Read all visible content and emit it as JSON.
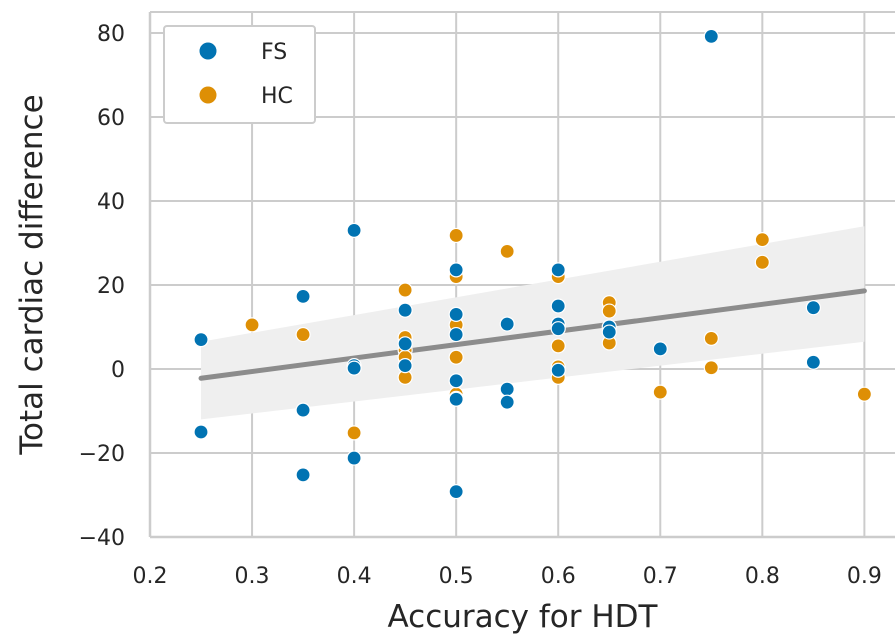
{
  "chart_data": {
    "type": "scatter",
    "xlabel": "Accuracy for HDT",
    "ylabel": "Total cardiac difference",
    "xlim": [
      0.2,
      0.93
    ],
    "ylim": [
      -40,
      85
    ],
    "xticks": [
      0.2,
      0.3,
      0.4,
      0.5,
      0.6,
      0.7,
      0.8,
      0.9
    ],
    "xtick_labels": [
      "0.2",
      "0.3",
      "0.4",
      "0.5",
      "0.6",
      "0.7",
      "0.8",
      "0.9"
    ],
    "yticks": [
      -40,
      -20,
      0,
      20,
      40,
      60,
      80
    ],
    "ytick_labels": [
      "−40",
      "−20",
      "0",
      "20",
      "40",
      "60",
      "80"
    ],
    "grid": true,
    "legend_position": "top-left",
    "series": [
      {
        "name": "FS",
        "color": "#0173b2",
        "x": [
          0.25,
          0.25,
          0.35,
          0.35,
          0.35,
          0.4,
          0.4,
          0.4,
          0.4,
          0.45,
          0.45,
          0.45,
          0.5,
          0.5,
          0.5,
          0.5,
          0.5,
          0.5,
          0.55,
          0.55,
          0.55,
          0.6,
          0.6,
          0.6,
          0.6,
          0.6,
          0.65,
          0.65,
          0.7,
          0.75,
          0.85,
          0.85
        ],
        "y": [
          7,
          -15,
          17.3,
          -9.8,
          -25.2,
          33,
          0.8,
          0.2,
          -21.2,
          14,
          6,
          0.8,
          23.6,
          13,
          8.2,
          -2.8,
          -7.2,
          -29.2,
          10.7,
          -4.8,
          -7.9,
          23.6,
          15,
          10.7,
          9.6,
          -0.3,
          10,
          8.8,
          4.8,
          79.2,
          14.6,
          1.6
        ]
      },
      {
        "name": "HC",
        "color": "#de8f05",
        "x": [
          0.3,
          0.35,
          0.4,
          0.45,
          0.45,
          0.45,
          0.45,
          0.45,
          0.5,
          0.5,
          0.5,
          0.5,
          0.5,
          0.5,
          0.55,
          0.6,
          0.6,
          0.6,
          0.6,
          0.65,
          0.65,
          0.65,
          0.7,
          0.75,
          0.75,
          0.8,
          0.8,
          0.9
        ],
        "y": [
          10.5,
          8.2,
          -15.2,
          18.8,
          7.5,
          4.5,
          2.8,
          -2,
          31.8,
          22,
          10.5,
          2.8,
          -6,
          -7,
          28,
          22,
          5.5,
          0.5,
          -2,
          15.8,
          13.8,
          6.2,
          -5.5,
          7.3,
          0.3,
          30.8,
          25.4,
          -6
        ]
      }
    ],
    "regression": {
      "color": "#8c8c8c",
      "x": [
        0.25,
        0.9
      ],
      "y": [
        -2.2,
        18.6
      ],
      "ci_upper": [
        6.5,
        34
      ],
      "ci_lower": [
        -12,
        6.5
      ]
    }
  }
}
